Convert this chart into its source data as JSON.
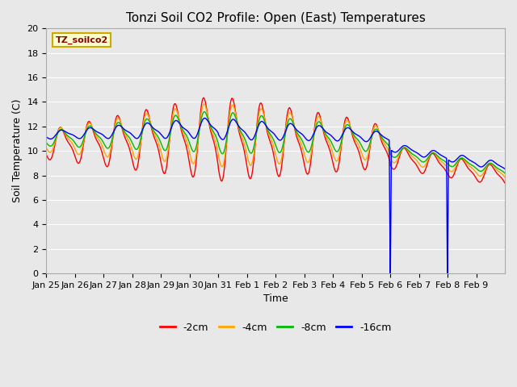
{
  "title": "Tonzi Soil CO2 Profile: Open (East) Temperatures",
  "xlabel": "Time",
  "ylabel": "Soil Temperature (C)",
  "ylim": [
    0,
    20
  ],
  "plot_bg_color": "#e8e8e8",
  "fig_bg_color": "#e8e8e8",
  "colors": {
    "-2cm": "#ff0000",
    "-4cm": "#ffa500",
    "-8cm": "#00bb00",
    "-16cm": "#0000ff"
  },
  "legend_label": "TZ_soilco2",
  "legend_labels": [
    "-2cm",
    "-4cm",
    "-8cm",
    "-16cm"
  ],
  "xtick_labels": [
    "Jan 25",
    "Jan 26",
    "Jan 27",
    "Jan 28",
    "Jan 29",
    "Jan 30",
    "Jan 31",
    "Feb 1",
    "Feb 2",
    "Feb 3",
    "Feb 4",
    "Feb 5",
    "Feb 6",
    "Feb 7",
    "Feb 8",
    "Feb 9"
  ],
  "ytick_vals": [
    0,
    2,
    4,
    6,
    8,
    10,
    12,
    14,
    16,
    18,
    20
  ],
  "title_fontsize": 11,
  "label_fontsize": 9,
  "tick_fontsize": 8
}
